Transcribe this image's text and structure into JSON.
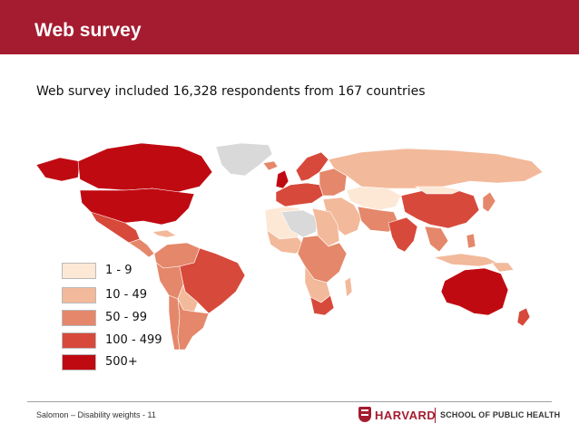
{
  "header": {
    "title": "Web survey"
  },
  "subtitle": "Web survey included 16,328 respondents from 167 countries",
  "legend": {
    "items": [
      {
        "label": "1 - 9",
        "color": "#fde8d6"
      },
      {
        "label": "10 - 49",
        "color": "#f2b99a"
      },
      {
        "label": "50 - 99",
        "color": "#e5876a"
      },
      {
        "label": "100 - 499",
        "color": "#d7493a"
      },
      {
        "label": "500+",
        "color": "#c00a12"
      }
    ]
  },
  "colors": {
    "brand": "#a51c30",
    "no_data": "#d9d9d9",
    "border": "#ffffff"
  },
  "footer": {
    "text": "Salomon – Disability weights - 11",
    "logo_harvard": "HARVARD",
    "logo_school": "SCHOOL OF PUBLIC HEALTH"
  }
}
